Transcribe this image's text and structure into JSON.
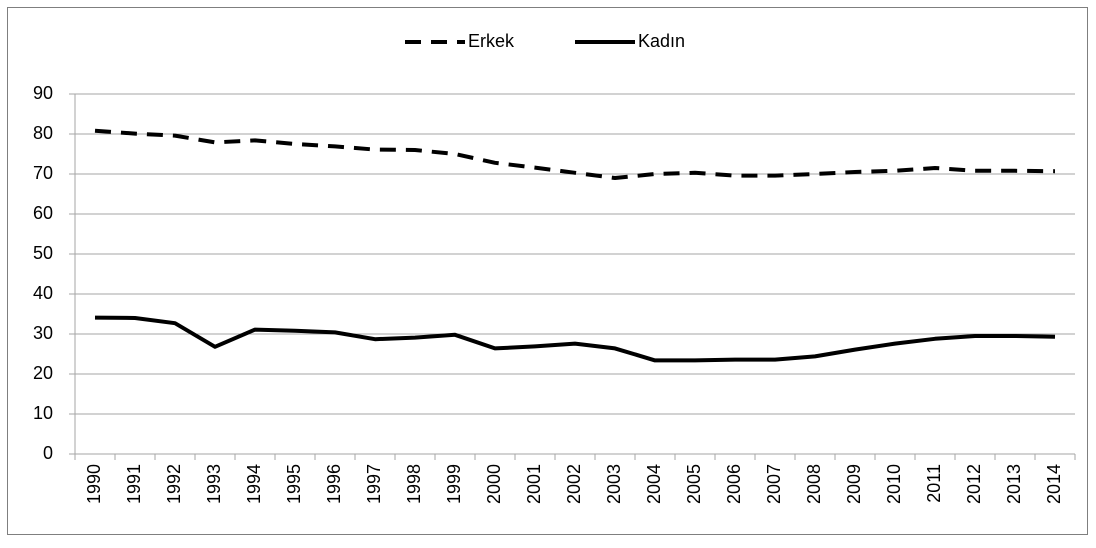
{
  "chart_data": {
    "type": "line",
    "categories": [
      "1990",
      "1991",
      "1992",
      "1993",
      "1994",
      "1995",
      "1996",
      "1997",
      "1998",
      "1999",
      "2000",
      "2001",
      "2002",
      "2003",
      "2004",
      "2005",
      "2006",
      "2007",
      "2008",
      "2009",
      "2010",
      "2011",
      "2012",
      "2013",
      "2014"
    ],
    "series": [
      {
        "name": "Erkek",
        "color": "#000000",
        "dash": "dashed",
        "values": [
          80.8,
          80.1,
          79.6,
          77.9,
          78.4,
          77.5,
          76.9,
          76.1,
          76.0,
          75.0,
          72.8,
          71.6,
          70.3,
          69.0,
          70.0,
          70.3,
          69.6,
          69.6,
          70.0,
          70.5,
          70.8,
          71.5,
          70.8,
          70.8,
          70.7
        ]
      },
      {
        "name": "Kadın",
        "color": "#000000",
        "dash": "solid",
        "values": [
          34.1,
          34.0,
          32.7,
          26.8,
          31.1,
          30.8,
          30.4,
          28.7,
          29.1,
          29.8,
          26.4,
          26.9,
          27.6,
          26.4,
          23.4,
          23.4,
          23.6,
          23.6,
          24.4,
          26.1,
          27.6,
          28.8,
          29.5,
          29.5,
          29.3
        ]
      }
    ],
    "ylim": [
      0,
      90
    ],
    "yticks": [
      0,
      10,
      20,
      30,
      40,
      50,
      60,
      70,
      80,
      90
    ],
    "grid": true,
    "legend": "top"
  }
}
